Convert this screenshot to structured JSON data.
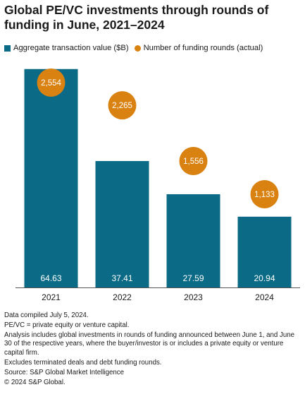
{
  "title": "Global PE/VC investments through rounds of funding in June, 2021–2024",
  "colors": {
    "bar": "#0b6a86",
    "bubble": "#d98211",
    "axis": "#555555",
    "bubble_text": "#ffffff",
    "bar_text": "#ffffff"
  },
  "chart_data": {
    "type": "bar",
    "title": "Global PE/VC investments through rounds of funding in June, 2021–2024",
    "categories": [
      "2021",
      "2022",
      "2023",
      "2024"
    ],
    "series": [
      {
        "name": "Aggregate transaction value ($B)",
        "type": "bar",
        "values": [
          64.63,
          37.41,
          27.59,
          20.94
        ],
        "labels": [
          "64.63",
          "37.41",
          "27.59",
          "20.94"
        ]
      },
      {
        "name": "Number of funding rounds (actual)",
        "type": "bubble",
        "values": [
          2554,
          2265,
          1556,
          1133
        ],
        "labels": [
          "2,554",
          "2,265",
          "1,556",
          "1,133"
        ]
      }
    ],
    "legend_position": "top-left",
    "grid": false
  },
  "footnotes": [
    "Data compiled July 5, 2024.",
    "PE/VC = private equity or venture capital.",
    "Analysis includes global investments in rounds of funding announced between June 1, and June 30 of the respective years, where the buyer/investor is or includes a private equity or venture capital firm.",
    "Excludes terminated deals and debt funding rounds.",
    "Source: S&P Global Market Intelligence",
    "© 2024 S&P Global."
  ]
}
